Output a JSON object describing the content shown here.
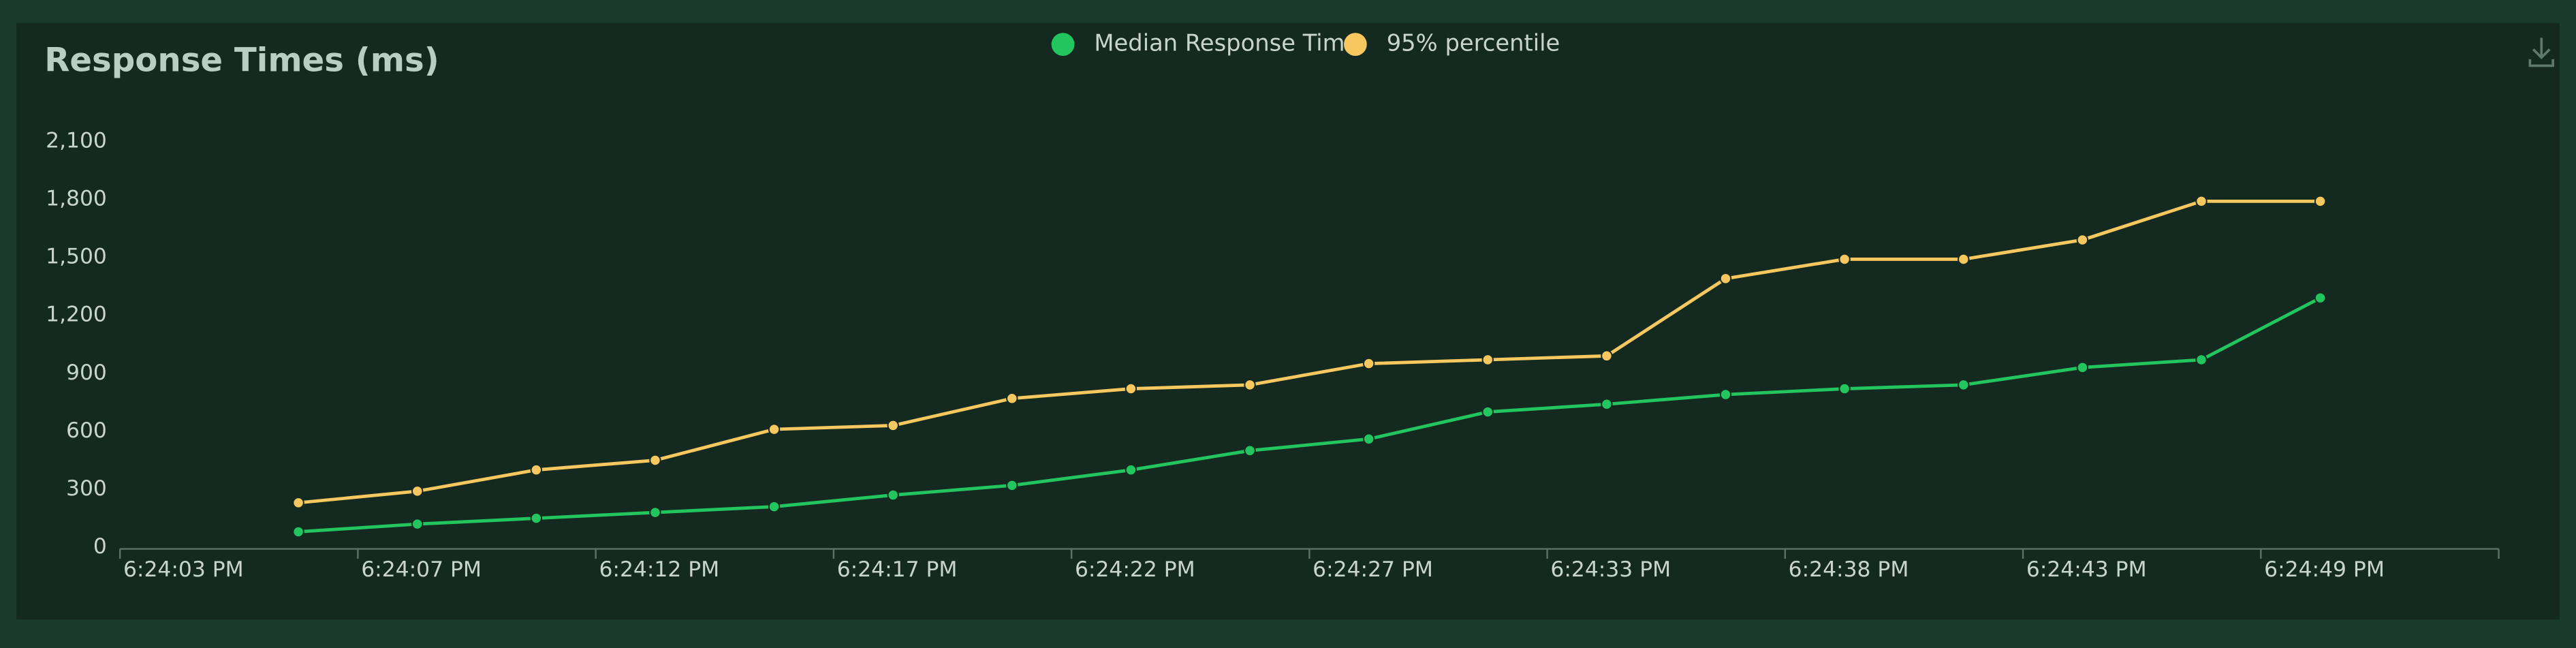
{
  "chart_data": {
    "type": "line",
    "title": "Response Times (ms)",
    "xlim": [
      0,
      20
    ],
    "xticks": [
      {
        "value": 0,
        "label": "6:24:03 PM"
      },
      {
        "value": 2,
        "label": "6:24:07 PM"
      },
      {
        "value": 4,
        "label": "6:24:12 PM"
      },
      {
        "value": 6,
        "label": "6:24:17 PM"
      },
      {
        "value": 8,
        "label": "6:24:22 PM"
      },
      {
        "value": 10,
        "label": "6:24:27 PM"
      },
      {
        "value": 12,
        "label": "6:24:33 PM"
      },
      {
        "value": 14,
        "label": "6:24:38 PM"
      },
      {
        "value": 16,
        "label": "6:24:43 PM"
      },
      {
        "value": 18,
        "label": "6:24:49 PM"
      }
    ],
    "x": [
      1.5,
      2.5,
      3.5,
      4.5,
      5.5,
      6.5,
      7.5,
      8.5,
      9.5,
      10.5,
      11.5,
      12.5,
      13.5,
      14.5,
      15.5,
      16.5,
      17.5,
      18.5
    ],
    "ylim": [
      0,
      2100
    ],
    "yticks": [
      0,
      {
        "value": 300,
        "label": "300"
      },
      {
        "value": 600,
        "label": "600"
      },
      {
        "value": 900,
        "label": "900"
      },
      {
        "value": 1200,
        "label": "1,200"
      },
      {
        "value": 1500,
        "label": "1,500"
      },
      {
        "value": 1800,
        "label": "1,800"
      },
      {
        "value": 2100,
        "label": "2,100"
      }
    ],
    "legend": "top",
    "series": [
      {
        "name": "Median Response Time",
        "color": "#22c55e",
        "values": [
          80,
          120,
          150,
          180,
          210,
          270,
          320,
          400,
          500,
          560,
          700,
          740,
          790,
          820,
          840,
          930,
          970,
          1290
        ]
      },
      {
        "name": "95% percentile",
        "color": "#f6c85f",
        "values": [
          230,
          290,
          400,
          450,
          610,
          630,
          770,
          820,
          840,
          950,
          970,
          990,
          1390,
          1490,
          1490,
          1590,
          1790,
          1790
        ]
      }
    ]
  }
}
